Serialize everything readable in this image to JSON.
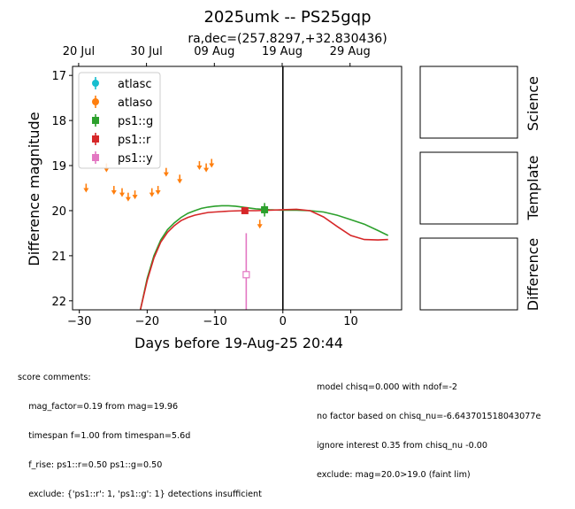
{
  "title": "2025umk -- PS25gqp",
  "subtitle": "ra,dec=(257.8297,+32.830436)",
  "side_panels": [
    "Science",
    "Template",
    "Difference"
  ],
  "chart_data": {
    "type": "scatter",
    "xlabel": "Days before 19-Aug-25 20:44",
    "ylabel": "Difference magnitude",
    "xlim": [
      -31,
      17.5
    ],
    "ylim": [
      22.2,
      16.8
    ],
    "y_inverted": true,
    "xticks": [
      -30,
      -20,
      -10,
      0,
      10
    ],
    "yticks": [
      17,
      18,
      19,
      20,
      21,
      22
    ],
    "top_axis_ticks": [
      {
        "x": -30.1,
        "label": "20 Jul"
      },
      {
        "x": -20.1,
        "label": "30 Jul"
      },
      {
        "x": -10.1,
        "label": "09 Aug"
      },
      {
        "x": -0.1,
        "label": "19 Aug"
      },
      {
        "x": 9.9,
        "label": "29 Aug"
      }
    ],
    "vline_x": 0,
    "legend_position": "upper-left",
    "legend": [
      {
        "label": "atlasc",
        "color": "#17becf",
        "marker": "circle"
      },
      {
        "label": "atlaso",
        "color": "#ff7f0e",
        "marker": "circle"
      },
      {
        "label": "ps1::g",
        "color": "#2ca02c",
        "marker": "square"
      },
      {
        "label": "ps1::r",
        "color": "#d62728",
        "marker": "square"
      },
      {
        "label": "ps1::y",
        "color": "#e377c2",
        "marker": "square"
      }
    ],
    "upper_limits": {
      "series": "atlaso",
      "color": "#ff7f0e",
      "points": [
        {
          "x": -29.0,
          "y": 19.5
        },
        {
          "x": -26.0,
          "y": 19.05
        },
        {
          "x": -24.9,
          "y": 19.55
        },
        {
          "x": -23.7,
          "y": 19.6
        },
        {
          "x": -22.8,
          "y": 19.7
        },
        {
          "x": -21.8,
          "y": 19.65
        },
        {
          "x": -19.3,
          "y": 19.6
        },
        {
          "x": -18.4,
          "y": 19.55
        },
        {
          "x": -17.2,
          "y": 19.15
        },
        {
          "x": -15.2,
          "y": 19.3
        },
        {
          "x": -12.3,
          "y": 19.0
        },
        {
          "x": -11.3,
          "y": 19.05
        },
        {
          "x": -10.5,
          "y": 18.95
        },
        {
          "x": -3.4,
          "y": 20.3
        }
      ]
    },
    "detections": [
      {
        "series": "ps1::g",
        "x": -2.7,
        "y": 19.98,
        "yerr": 0.15,
        "color": "#2ca02c",
        "marker": "filled-square"
      },
      {
        "series": "ps1::r",
        "x": -5.6,
        "y": 20.0,
        "yerr": 0.03,
        "color": "#d62728",
        "marker": "filled-square"
      },
      {
        "series": "ps1::y",
        "x": -5.4,
        "y": 21.42,
        "yerr": 0.92,
        "color": "#e377c2",
        "marker": "open-square"
      }
    ],
    "model_curves": [
      {
        "series": "ps1::g",
        "color": "#2ca02c",
        "points": [
          [
            -21.0,
            22.2
          ],
          [
            -20.0,
            21.5
          ],
          [
            -19.0,
            21.0
          ],
          [
            -18.0,
            20.65
          ],
          [
            -17.0,
            20.42
          ],
          [
            -16.0,
            20.27
          ],
          [
            -15.0,
            20.15
          ],
          [
            -14.0,
            20.06
          ],
          [
            -13.0,
            20.0
          ],
          [
            -12.0,
            19.95
          ],
          [
            -11.0,
            19.92
          ],
          [
            -10.0,
            19.9
          ],
          [
            -9.0,
            19.89
          ],
          [
            -8.0,
            19.89
          ],
          [
            -7.0,
            19.9
          ],
          [
            -6.0,
            19.92
          ],
          [
            -5.0,
            19.94
          ],
          [
            -4.0,
            19.96
          ],
          [
            -3.0,
            19.97
          ],
          [
            -2.0,
            19.98
          ],
          [
            0.0,
            19.99
          ],
          [
            2.0,
            19.99
          ],
          [
            4.0,
            20.0
          ],
          [
            6.0,
            20.03
          ],
          [
            8.0,
            20.1
          ],
          [
            10.0,
            20.2
          ],
          [
            12.0,
            20.3
          ],
          [
            14.0,
            20.44
          ],
          [
            15.5,
            20.55
          ]
        ]
      },
      {
        "series": "ps1::r",
        "color": "#d62728",
        "points": [
          [
            -21.0,
            22.2
          ],
          [
            -20.0,
            21.55
          ],
          [
            -19.0,
            21.05
          ],
          [
            -18.0,
            20.7
          ],
          [
            -17.0,
            20.48
          ],
          [
            -16.0,
            20.33
          ],
          [
            -15.0,
            20.22
          ],
          [
            -14.0,
            20.15
          ],
          [
            -13.0,
            20.1
          ],
          [
            -12.0,
            20.07
          ],
          [
            -11.0,
            20.04
          ],
          [
            -10.0,
            20.03
          ],
          [
            -9.0,
            20.02
          ],
          [
            -8.0,
            20.01
          ],
          [
            -6.0,
            20.0
          ],
          [
            -4.0,
            20.0
          ],
          [
            -2.0,
            19.99
          ],
          [
            0.0,
            19.98
          ],
          [
            2.0,
            19.97
          ],
          [
            4.0,
            20.0
          ],
          [
            6.0,
            20.14
          ],
          [
            8.0,
            20.35
          ],
          [
            10.0,
            20.55
          ],
          [
            12.0,
            20.64
          ],
          [
            14.0,
            20.65
          ],
          [
            15.5,
            20.64
          ]
        ]
      }
    ]
  },
  "comments_left": [
    "score comments:",
    "    mag_factor=0.19 from mag=19.96",
    "    timespan f=1.00 from timespan=5.6d",
    "    f_rise: ps1::r=0.50 ps1::g=0.50",
    "    exclude: {'ps1::r': 1, 'ps1::g': 1} detections insufficient"
  ],
  "comments_right": [
    "model chisq=0.000 with ndof=-2",
    "no factor based on chisq_nu=-6.643701518043077e",
    "ignore interest 0.35 from chisq_nu -0.00",
    "exclude: mag=20.0>19.0 (faint lim)"
  ]
}
